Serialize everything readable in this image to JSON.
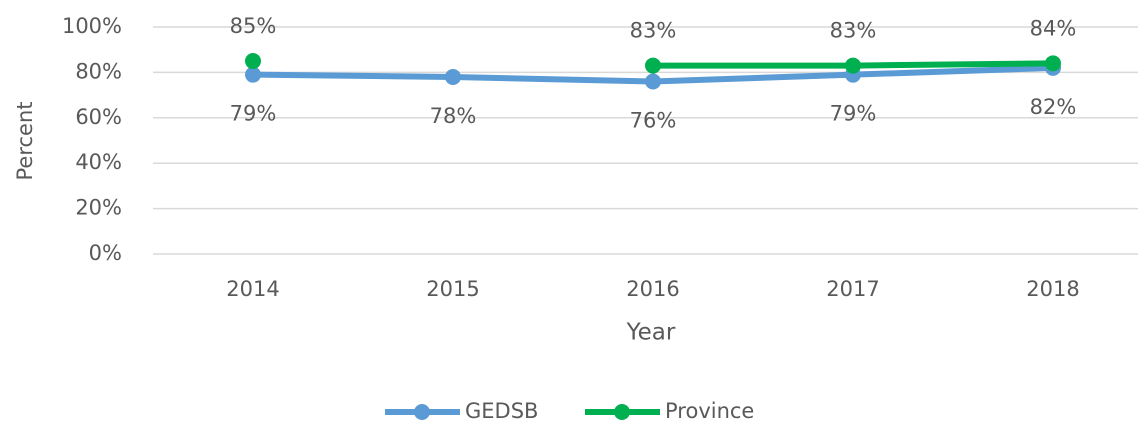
{
  "chart_data": {
    "type": "line",
    "x_label": "Year",
    "y_label": "Percent",
    "categories": [
      "2014",
      "2015",
      "2016",
      "2017",
      "2018"
    ],
    "series": [
      {
        "name": "GEDSB",
        "color": "#5b9bd5",
        "values": [
          79,
          78,
          76,
          79,
          82
        ],
        "value_labels": [
          "79%",
          "78%",
          "76%",
          "79%",
          "82%"
        ]
      },
      {
        "name": "Province",
        "color": "#00b050",
        "values": [
          85,
          null,
          83,
          83,
          84
        ],
        "value_labels": [
          "85%",
          null,
          "83%",
          "83%",
          "84%"
        ]
      }
    ],
    "ylim": [
      0,
      100
    ],
    "yticks": [
      {
        "value": 0,
        "label": "0%"
      },
      {
        "value": 20,
        "label": "20%"
      },
      {
        "value": 40,
        "label": "40%"
      },
      {
        "value": 60,
        "label": "60%"
      },
      {
        "value": 80,
        "label": "80%"
      },
      {
        "value": 100,
        "label": "100%"
      }
    ],
    "grid": true,
    "legend": "bottom"
  }
}
